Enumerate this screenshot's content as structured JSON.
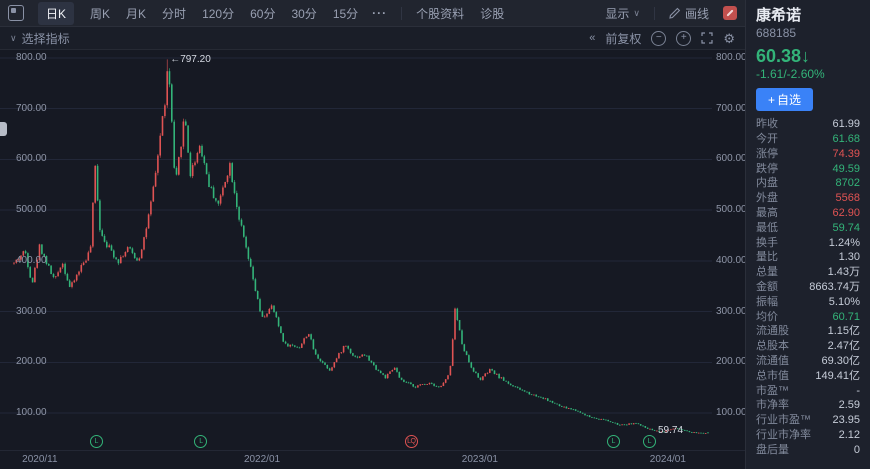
{
  "colors": {
    "green": "#33b479",
    "red": "#e05353",
    "blue": "#3a82f7"
  },
  "toolbar": {
    "tabs": [
      {
        "id": "day-k",
        "label": "日K",
        "active": true
      },
      {
        "id": "week-k",
        "label": "周K"
      },
      {
        "id": "month-k",
        "label": "月K"
      },
      {
        "id": "intraday",
        "label": "分时"
      },
      {
        "id": "min-120",
        "label": "120分"
      },
      {
        "id": "min-60",
        "label": "60分"
      },
      {
        "id": "min-30",
        "label": "30分"
      },
      {
        "id": "min-15",
        "label": "15分"
      }
    ],
    "more_label": "···",
    "extra_tabs": [
      {
        "id": "stock-info",
        "label": "个股资料"
      },
      {
        "id": "diagnosis",
        "label": "诊股"
      }
    ],
    "display_label": "显示",
    "draw_label": "画线"
  },
  "subbar": {
    "indicator_label": "选择指标",
    "caret_glyph": "∨",
    "collapse_glyph": "«",
    "adjust_label": "前复权",
    "zoom_out_glyph": "−",
    "zoom_in_glyph": "+",
    "gear_glyph": "⚙"
  },
  "chart_data": {
    "type": "candlestick",
    "title": "康希诺 688185 日K",
    "y_ticks": [
      800,
      700,
      600,
      500,
      400,
      300,
      200,
      100
    ],
    "ylim": [
      25,
      810
    ],
    "grid": true,
    "x_axis": [
      {
        "label": "2020/11",
        "pos": 0.056
      },
      {
        "label": "2022/01",
        "pos": 0.368
      },
      {
        "label": "2023/01",
        "pos": 0.674
      },
      {
        "label": "2024/01",
        "pos": 0.938
      }
    ],
    "peak_price": 797.2,
    "last_close": 60.38,
    "last_open": 61.68,
    "last_low": 59.74,
    "annotations": {
      "peak_label": "←797.20",
      "low_label": "59.74"
    },
    "candle_count": 300,
    "seed": 42,
    "volatility": 0.015,
    "wick": 0.009,
    "waypoints": [
      [
        0.0,
        395
      ],
      [
        0.016,
        420
      ],
      [
        0.026,
        355
      ],
      [
        0.037,
        430
      ],
      [
        0.049,
        390
      ],
      [
        0.059,
        360
      ],
      [
        0.069,
        400
      ],
      [
        0.081,
        345
      ],
      [
        0.095,
        385
      ],
      [
        0.11,
        420
      ],
      [
        0.117,
        585
      ],
      [
        0.124,
        460
      ],
      [
        0.135,
        430
      ],
      [
        0.15,
        400
      ],
      [
        0.164,
        425
      ],
      [
        0.179,
        400
      ],
      [
        0.189,
        455
      ],
      [
        0.196,
        500
      ],
      [
        0.203,
        560
      ],
      [
        0.21,
        640
      ],
      [
        0.218,
        720
      ],
      [
        0.222,
        790
      ],
      [
        0.228,
        660
      ],
      [
        0.232,
        540
      ],
      [
        0.246,
        690
      ],
      [
        0.254,
        570
      ],
      [
        0.268,
        630
      ],
      [
        0.282,
        545
      ],
      [
        0.295,
        510
      ],
      [
        0.303,
        555
      ],
      [
        0.311,
        590
      ],
      [
        0.325,
        480
      ],
      [
        0.34,
        390
      ],
      [
        0.357,
        285
      ],
      [
        0.372,
        310
      ],
      [
        0.39,
        235
      ],
      [
        0.412,
        230
      ],
      [
        0.424,
        260
      ],
      [
        0.434,
        215
      ],
      [
        0.455,
        185
      ],
      [
        0.477,
        235
      ],
      [
        0.491,
        210
      ],
      [
        0.506,
        215
      ],
      [
        0.52,
        190
      ],
      [
        0.535,
        170
      ],
      [
        0.549,
        190
      ],
      [
        0.556,
        165
      ],
      [
        0.578,
        152
      ],
      [
        0.599,
        160
      ],
      [
        0.614,
        150
      ],
      [
        0.628,
        178
      ],
      [
        0.6355,
        305
      ],
      [
        0.646,
        235
      ],
      [
        0.657,
        195
      ],
      [
        0.671,
        165
      ],
      [
        0.686,
        185
      ],
      [
        0.7,
        170
      ],
      [
        0.722,
        150
      ],
      [
        0.744,
        138
      ],
      [
        0.765,
        128
      ],
      [
        0.787,
        113
      ],
      [
        0.808,
        106
      ],
      [
        0.83,
        92
      ],
      [
        0.852,
        86
      ],
      [
        0.873,
        76
      ],
      [
        0.895,
        80
      ],
      [
        0.916,
        68
      ],
      [
        0.934,
        63
      ],
      [
        0.952,
        70
      ],
      [
        0.974,
        62
      ],
      [
        1.0,
        60.4
      ]
    ],
    "event_markers": [
      {
        "t": 0.117,
        "label": "L",
        "type": "green"
      },
      {
        "t": 0.268,
        "label": "L",
        "type": "green"
      },
      {
        "t": 0.571,
        "label": "LQ",
        "type": "red"
      },
      {
        "t": 0.862,
        "label": "L",
        "type": "green"
      },
      {
        "t": 0.914,
        "label": "L",
        "type": "green"
      }
    ]
  },
  "quote_panel": {
    "name": "康希诺",
    "code": "688185",
    "price": "60.38",
    "arrow": "↓",
    "change": "-1.61/-2.60%",
    "watchlist_plus": "+",
    "watchlist_label": "自选",
    "stats": [
      {
        "label": "昨收",
        "value": "61.99",
        "color": "neutral"
      },
      {
        "label": "今开",
        "value": "61.68",
        "color": "green"
      },
      {
        "label": "涨停",
        "value": "74.39",
        "color": "red"
      },
      {
        "label": "跌停",
        "value": "49.59",
        "color": "green"
      },
      {
        "label": "内盘",
        "value": "8702",
        "color": "green"
      },
      {
        "label": "外盘",
        "value": "5568",
        "color": "red"
      },
      {
        "label": "最高",
        "value": "62.90",
        "color": "red"
      },
      {
        "label": "最低",
        "value": "59.74",
        "color": "green"
      },
      {
        "label": "换手",
        "value": "1.24%",
        "color": "neutral"
      },
      {
        "label": "量比",
        "value": "1.30",
        "color": "neutral"
      },
      {
        "label": "总量",
        "value": "1.43万",
        "color": "neutral"
      },
      {
        "label": "金额",
        "value": "8663.74万",
        "color": "neutral"
      },
      {
        "label": "振幅",
        "value": "5.10%",
        "color": "neutral"
      },
      {
        "label": "均价",
        "value": "60.71",
        "color": "green"
      },
      {
        "label": "流通股",
        "value": "1.15亿",
        "color": "neutral"
      },
      {
        "label": "总股本",
        "value": "2.47亿",
        "color": "neutral"
      },
      {
        "label": "流通值",
        "value": "69.30亿",
        "color": "neutral"
      },
      {
        "label": "总市值",
        "value": "149.41亿",
        "color": "neutral"
      },
      {
        "label": "市盈™",
        "value": "-",
        "color": "neutral"
      },
      {
        "label": "市净率",
        "value": "2.59",
        "color": "neutral"
      },
      {
        "label": "行业市盈™",
        "value": "23.95",
        "color": "neutral"
      },
      {
        "label": "行业市净率",
        "value": "2.12",
        "color": "neutral"
      },
      {
        "label": "盘后量",
        "value": "0",
        "color": "neutral"
      }
    ]
  }
}
